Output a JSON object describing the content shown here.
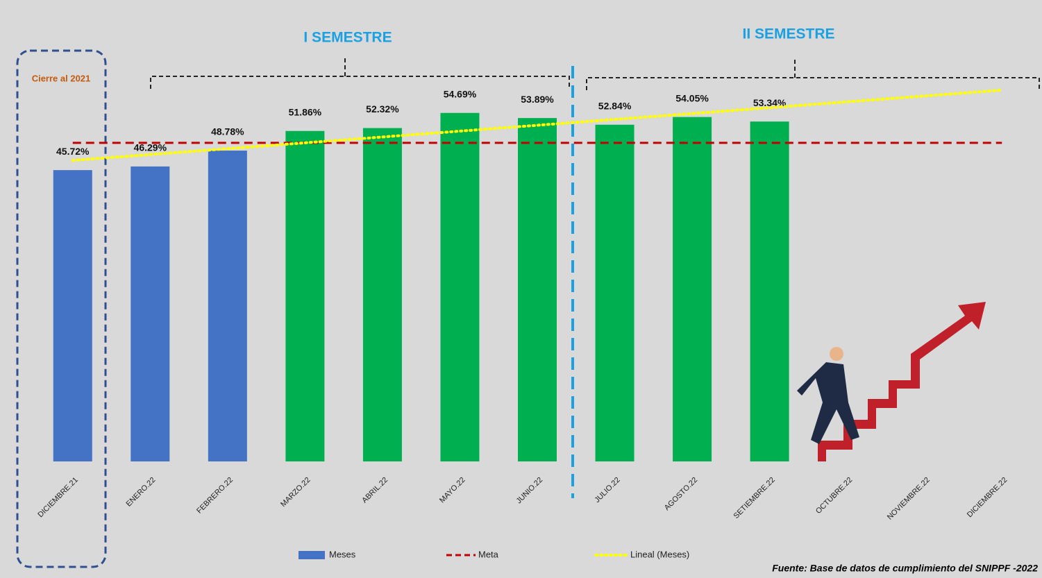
{
  "chart_data": {
    "type": "bar",
    "categories": [
      "DICIEMBRE.21",
      "ENERO.22",
      "FEBRERO.22",
      "MARZO.22",
      "ABRIL.22",
      "MAYO.22",
      "JUNIO.22",
      "JULIO.22",
      "AGOSTO.22",
      "SETIEMBRE.22",
      "OCTUBRE.22",
      "NOVIEMBRE.22",
      "DICIEMBRE.22"
    ],
    "series": [
      {
        "name": "Meses",
        "color": "#4472c4",
        "colors": [
          "#4472c4",
          "#4472c4",
          "#4472c4",
          "#00b050",
          "#00b050",
          "#00b050",
          "#00b050",
          "#00b050",
          "#00b050",
          "#00b050",
          null,
          null,
          null
        ],
        "values": [
          45.72,
          46.29,
          48.78,
          51.86,
          52.32,
          54.69,
          53.89,
          52.84,
          54.05,
          53.34,
          null,
          null,
          null
        ],
        "value_labels": [
          "45.72%",
          "46.29%",
          "48.78%",
          "51.86%",
          "52.32%",
          "54.69%",
          "53.89%",
          "52.84%",
          "54.05%",
          "53.34%",
          null,
          null,
          null
        ]
      }
    ],
    "meta": {
      "name": "Meta",
      "value": 50,
      "color": "#c00000"
    },
    "trend": {
      "name": "Lineal (Meses)",
      "color": "#ffff00"
    },
    "ylim": [
      0,
      60
    ],
    "annotations": {
      "first_semester": "I SEMESTRE",
      "second_semester": "II SEMESTRE",
      "closing": "Cierre al 2021",
      "source": "Fuente: Base de datos de cumplimiento del SNIPPF -2022"
    }
  }
}
